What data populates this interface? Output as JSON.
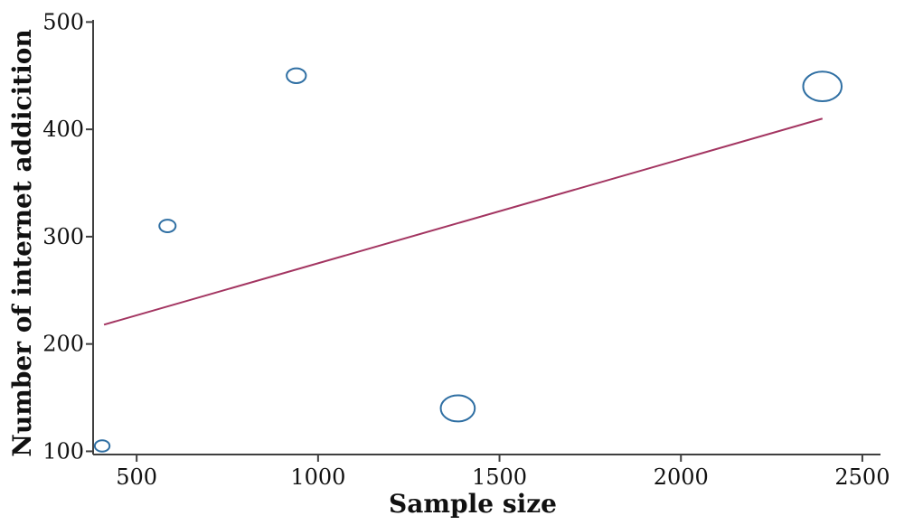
{
  "chart_data": {
    "type": "scatter",
    "xlabel": "Sample size",
    "ylabel": "Number of internet addicition",
    "xlim": [
      380,
      2550
    ],
    "ylim": [
      97,
      502
    ],
    "xticks": [
      500,
      1000,
      1500,
      2000,
      2500
    ],
    "yticks": [
      100,
      200,
      300,
      400,
      500
    ],
    "grid": false,
    "points": [
      {
        "x": 405,
        "y": 105,
        "weight": 1.0
      },
      {
        "x": 585,
        "y": 310,
        "weight": 1.1
      },
      {
        "x": 940,
        "y": 450,
        "weight": 1.3
      },
      {
        "x": 1385,
        "y": 140,
        "weight": 2.3
      },
      {
        "x": 2390,
        "y": 440,
        "weight": 2.6
      }
    ],
    "fit_line": {
      "x": [
        410,
        2390
      ],
      "y": [
        218,
        410
      ]
    },
    "colors": {
      "points": "#2f6fa3",
      "fit_line": "#a33561",
      "axes": "#3f3f3f"
    }
  }
}
